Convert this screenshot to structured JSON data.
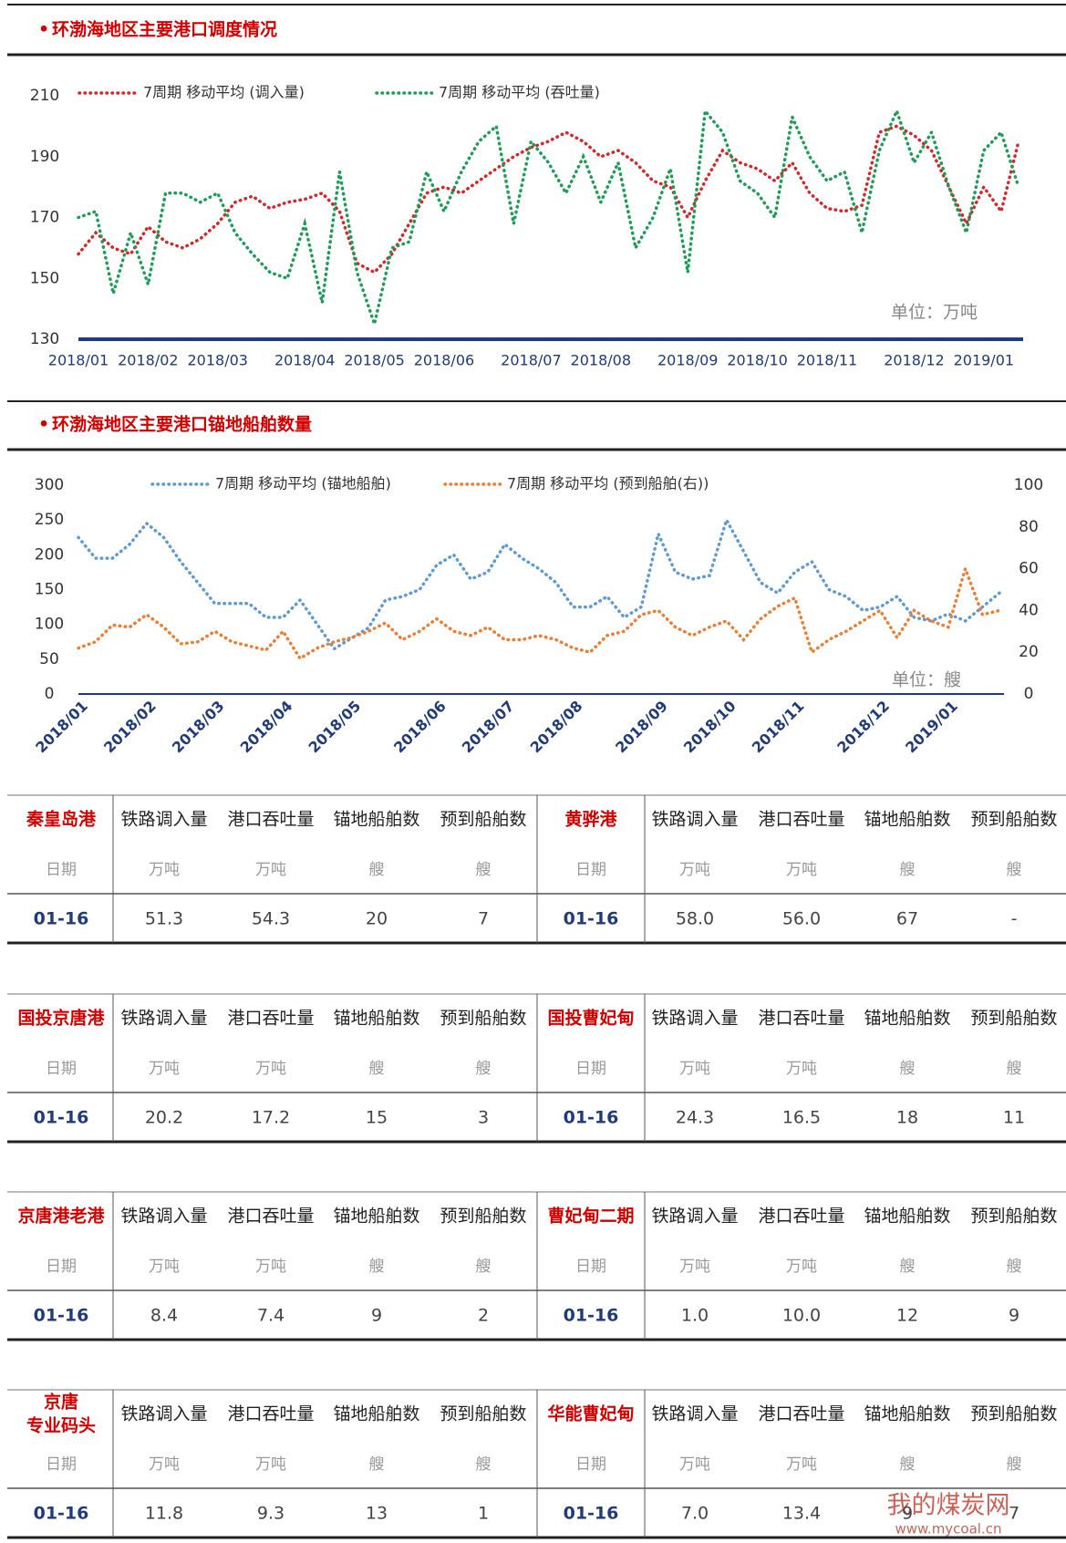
{
  "chart_data": [
    {
      "type": "line",
      "title": "环渤海地区主要港口调度情况",
      "unit_note": "单位：万吨",
      "categories": [
        "2018/01",
        null,
        null,
        null,
        "2018/02",
        null,
        null,
        null,
        "2018/03",
        null,
        null,
        null,
        null,
        "2018/04",
        null,
        null,
        null,
        "2018/05",
        null,
        null,
        null,
        "2018/06",
        null,
        null,
        null,
        null,
        "2018/07",
        null,
        null,
        null,
        "2018/08",
        null,
        null,
        null,
        null,
        "2018/09",
        null,
        null,
        null,
        "2018/10",
        null,
        null,
        null,
        "2018/11",
        null,
        null,
        null,
        null,
        "2018/12",
        null,
        null,
        null,
        "2019/01",
        null,
        null
      ],
      "series": [
        {
          "name": "7周期 移动平均 (调入量)",
          "color": "#d62728",
          "values": [
            158,
            165,
            160,
            158,
            167,
            162,
            160,
            163,
            168,
            175,
            177,
            173,
            175,
            176,
            178,
            172,
            155,
            152,
            158,
            168,
            178,
            180,
            178,
            182,
            186,
            190,
            193,
            195,
            198,
            195,
            190,
            192,
            188,
            182,
            180,
            170,
            182,
            192,
            188,
            186,
            182,
            188,
            178,
            173,
            172,
            174,
            198,
            200,
            197,
            192,
            180,
            168,
            180,
            172,
            195
          ]
        },
        {
          "name": "7周期 移动平均 (吞吐量)",
          "color": "#1a9e55",
          "values": [
            170,
            172,
            145,
            165,
            148,
            178,
            178,
            175,
            178,
            165,
            158,
            152,
            150,
            168,
            142,
            185,
            152,
            135,
            160,
            162,
            185,
            172,
            185,
            195,
            200,
            168,
            195,
            188,
            178,
            190,
            175,
            188,
            160,
            170,
            186,
            152,
            205,
            198,
            182,
            178,
            170,
            203,
            190,
            182,
            185,
            165,
            192,
            205,
            188,
            198,
            180,
            165,
            192,
            198,
            180
          ]
        }
      ],
      "ylim": [
        130,
        210
      ],
      "yticks": [
        130,
        150,
        170,
        190,
        210
      ]
    },
    {
      "type": "line",
      "title": "环渤海地区主要港口锚地船舶数量",
      "unit_note": "单位：艘",
      "categories": [
        "2018/01",
        null,
        null,
        null,
        "2018/02",
        null,
        null,
        null,
        "2018/03",
        null,
        null,
        null,
        "2018/04",
        null,
        null,
        null,
        "2018/05",
        null,
        null,
        null,
        null,
        "2018/06",
        null,
        null,
        null,
        "2018/07",
        null,
        null,
        null,
        "2018/08",
        null,
        null,
        null,
        null,
        "2018/09",
        null,
        null,
        null,
        "2018/10",
        null,
        null,
        null,
        "2018/11",
        null,
        null,
        null,
        null,
        "2018/12",
        null,
        null,
        null,
        "2019/01",
        null,
        null,
        null
      ],
      "series": [
        {
          "name": "7周期 移动平均 (锚地船舶)",
          "color": "#5b9bd5",
          "values": [
            225,
            195,
            195,
            215,
            245,
            225,
            190,
            160,
            130,
            130,
            130,
            110,
            110,
            135,
            100,
            65,
            80,
            95,
            135,
            140,
            150,
            185,
            200,
            165,
            175,
            215,
            195,
            180,
            160,
            125,
            125,
            140,
            110,
            125,
            230,
            175,
            165,
            170,
            250,
            205,
            160,
            145,
            175,
            190,
            150,
            140,
            120,
            125,
            140,
            110,
            105,
            115,
            105,
            125,
            145
          ]
        },
        {
          "name": "7周期 移动平均 (预到船舶(右))",
          "color": "#ed7d31",
          "axis": "y2",
          "values": [
            22,
            25,
            33,
            32,
            38,
            32,
            24,
            25,
            30,
            25,
            23,
            21,
            30,
            17,
            22,
            25,
            27,
            30,
            34,
            26,
            30,
            36,
            30,
            28,
            32,
            26,
            26,
            28,
            26,
            22,
            20,
            28,
            30,
            38,
            40,
            32,
            28,
            32,
            35,
            26,
            36,
            42,
            46,
            20,
            26,
            30,
            35,
            40,
            27,
            40,
            35,
            32,
            60,
            38,
            40
          ]
        }
      ],
      "ylim": [
        0,
        300
      ],
      "yticks": [
        0,
        50,
        100,
        150,
        200,
        250,
        300
      ],
      "y2lim": [
        0,
        100
      ],
      "y2ticks": [
        0,
        20,
        40,
        60,
        80,
        100
      ]
    }
  ],
  "tables": {
    "columns": [
      "铁路调入量",
      "港口吞吐量",
      "锚地船舶数",
      "预到船舶数"
    ],
    "units": [
      "日期",
      "万吨",
      "万吨",
      "艘",
      "艘"
    ],
    "ports": [
      {
        "name": "秦皇岛港",
        "date": "01-16",
        "values": [
          "51.3",
          "54.3",
          "20",
          "7"
        ]
      },
      {
        "name": "黄骅港",
        "date": "01-16",
        "values": [
          "58.0",
          "56.0",
          "67",
          "-"
        ]
      },
      {
        "name": "国投京唐港",
        "date": "01-16",
        "values": [
          "20.2",
          "17.2",
          "15",
          "3"
        ]
      },
      {
        "name": "国投曹妃甸",
        "date": "01-16",
        "values": [
          "24.3",
          "16.5",
          "18",
          "11"
        ]
      },
      {
        "name": "京唐港老港",
        "date": "01-16",
        "values": [
          "8.4",
          "7.4",
          "9",
          "2"
        ]
      },
      {
        "name": "曹妃甸二期",
        "date": "01-16",
        "values": [
          "1.0",
          "10.0",
          "12",
          "9"
        ]
      },
      {
        "name": [
          "京唐",
          "专业码头"
        ],
        "date": "01-16",
        "values": [
          "11.8",
          "9.3",
          "13",
          "1"
        ]
      },
      {
        "name": "华能曹妃甸",
        "date": "01-16",
        "values": [
          "7.0",
          "13.4",
          "9",
          "7"
        ]
      }
    ]
  },
  "watermark": {
    "name": "我的煤炭网",
    "url": "www.mycoal.cn"
  }
}
